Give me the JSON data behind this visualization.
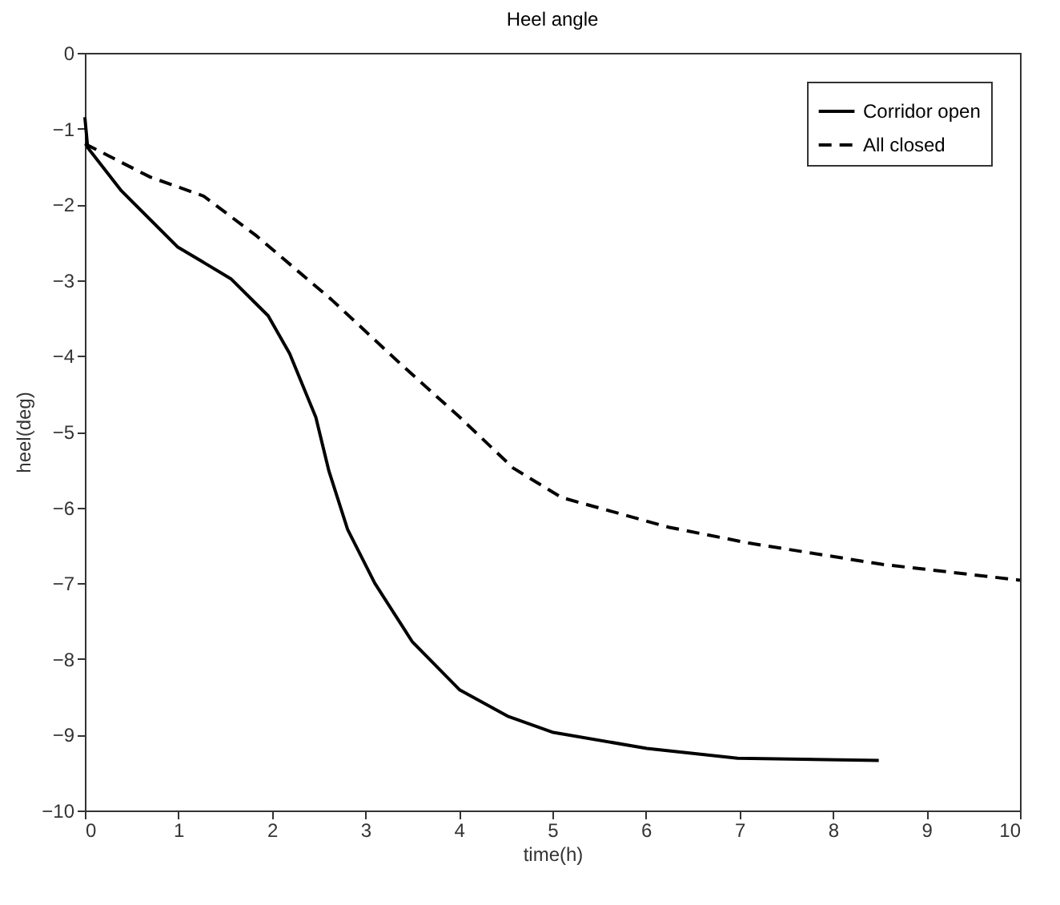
{
  "chart_data": {
    "type": "line",
    "title": "Heel angle",
    "xlabel": "time(h)",
    "ylabel": "heel(deg)",
    "xlim": [
      0,
      10
    ],
    "ylim": [
      -10,
      0
    ],
    "xticks": [
      0,
      1,
      2,
      3,
      4,
      5,
      6,
      7,
      8,
      9,
      10
    ],
    "yticks": [
      -10,
      -9,
      -8,
      -7,
      -6,
      -5,
      -4,
      -3,
      -2,
      -1,
      0
    ],
    "grid": false,
    "legend": "top right",
    "series": [
      {
        "name": "Corridor open",
        "color": "#000000",
        "line_style": "solid",
        "x": [
          0,
          0.03,
          0.39,
          0.99,
          1.56,
          1.96,
          2.19,
          2.47,
          2.61,
          2.81,
          3.1,
          3.5,
          4.01,
          4.53,
          5.01,
          6.01,
          6.98,
          8.49
        ],
        "values": [
          -0.85,
          -1.25,
          -1.82,
          -2.56,
          -2.98,
          -3.47,
          -3.97,
          -4.81,
          -5.52,
          -6.29,
          -7.0,
          -7.77,
          -8.41,
          -8.76,
          -8.97,
          -9.18,
          -9.31,
          -9.34
        ]
      },
      {
        "name": "All closed",
        "color": "#000000",
        "line_style": "dashed",
        "x": [
          0,
          0.7,
          1.27,
          1.84,
          2.64,
          3.38,
          4.01,
          4.58,
          5.1,
          6.24,
          7.1,
          8.52,
          10
        ],
        "values": [
          -1.2,
          -1.64,
          -1.89,
          -2.42,
          -3.26,
          -4.11,
          -4.81,
          -5.48,
          -5.87,
          -6.26,
          -6.47,
          -6.75,
          -6.96
        ]
      }
    ]
  }
}
